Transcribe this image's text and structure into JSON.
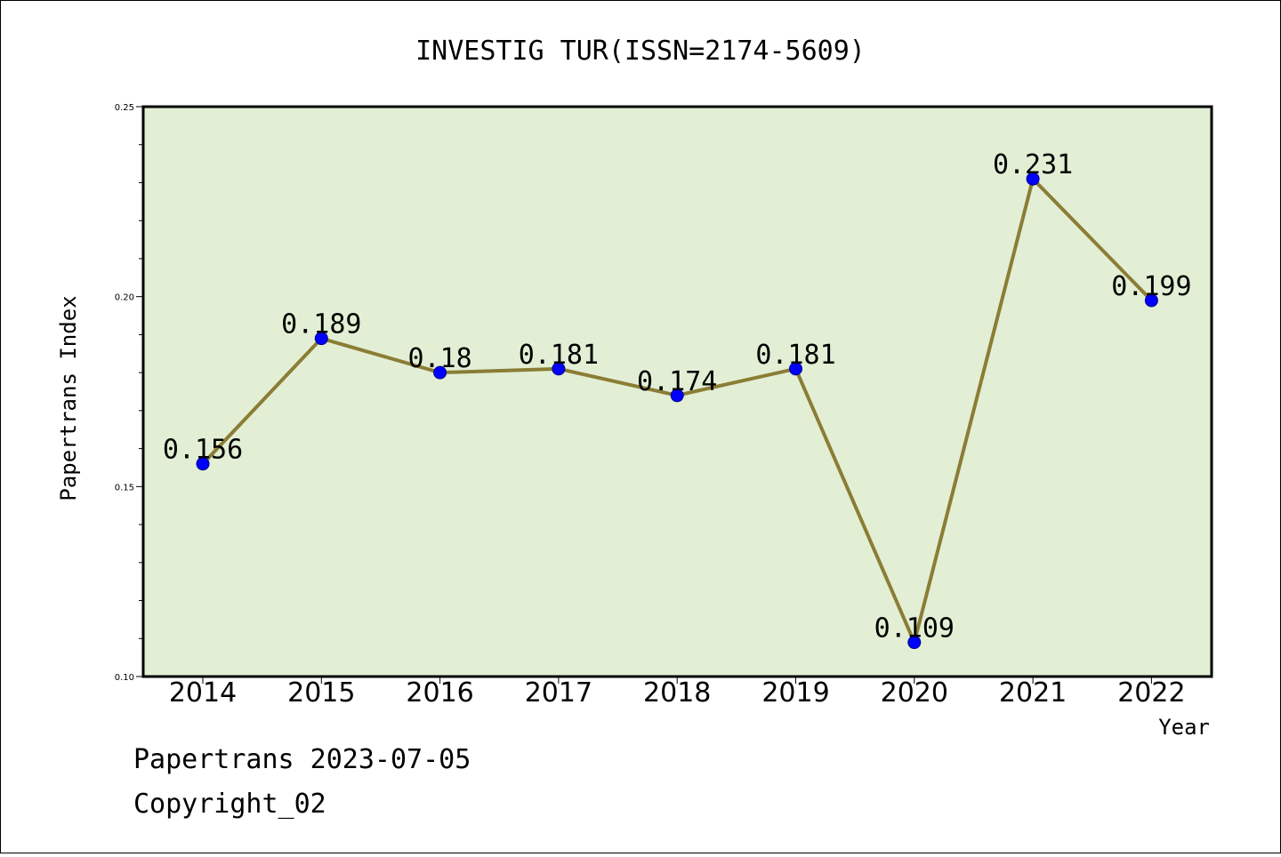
{
  "chart_data": {
    "type": "line",
    "title": "INVESTIG TUR(ISSN=2174-5609)",
    "xlabel": "Year",
    "ylabel": "Papertrans Index",
    "categories": [
      "2014",
      "2015",
      "2016",
      "2017",
      "2018",
      "2019",
      "2020",
      "2021",
      "2022"
    ],
    "series": [
      {
        "values": [
          0.156,
          0.189,
          0.18,
          0.181,
          0.174,
          0.181,
          0.109,
          0.231,
          0.199
        ],
        "data_labels": [
          "0.156",
          "0.189",
          "0.18",
          "0.181",
          "0.174",
          "0.181",
          "0.109",
          "0.231",
          "0.199"
        ]
      }
    ],
    "ylim": [
      0.1,
      0.25
    ],
    "yticks": [
      "0.10",
      "0.15",
      "0.20",
      "0.25"
    ],
    "grid": false,
    "legend": "none",
    "colors": {
      "plot_background": "#e2efd5",
      "line": "#8b7d35",
      "marker": "#0000ff"
    }
  },
  "footer": {
    "line1": "Papertrans 2023-07-05",
    "line2": "Copyright_02"
  }
}
